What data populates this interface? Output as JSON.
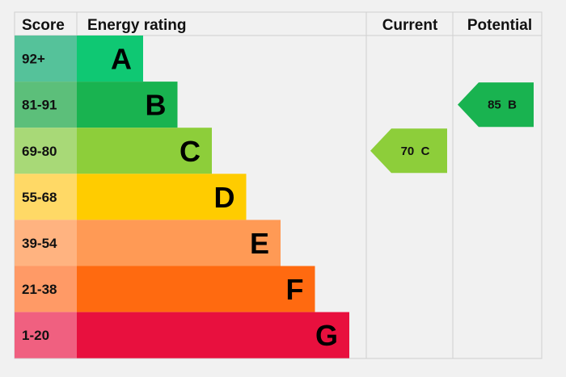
{
  "chart_data": {
    "type": "epc-rating",
    "headers": {
      "score": "Score",
      "rating": "Energy rating",
      "current": "Current",
      "potential": "Potential"
    },
    "bands": [
      {
        "letter": "A",
        "range": "92+",
        "color": "#0fc873",
        "tint": "#55c29a"
      },
      {
        "letter": "B",
        "range": "81-91",
        "color": "#19b350",
        "tint": "#5cbf7a"
      },
      {
        "letter": "C",
        "range": "69-80",
        "color": "#8dce3a",
        "tint": "#a8d977"
      },
      {
        "letter": "D",
        "range": "55-68",
        "color": "#ffcc00",
        "tint": "#ffd966"
      },
      {
        "letter": "E",
        "range": "39-54",
        "color": "#ff9a55",
        "tint": "#ffb380"
      },
      {
        "letter": "F",
        "range": "21-38",
        "color": "#ff6a10",
        "tint": "#ff9a66"
      },
      {
        "letter": "G",
        "range": "1-20",
        "color": "#e8103e",
        "tint": "#f06080"
      }
    ],
    "current": {
      "value": 70,
      "band": "C",
      "label": "70  C"
    },
    "potential": {
      "value": 85,
      "band": "B",
      "label": "85  B"
    }
  }
}
